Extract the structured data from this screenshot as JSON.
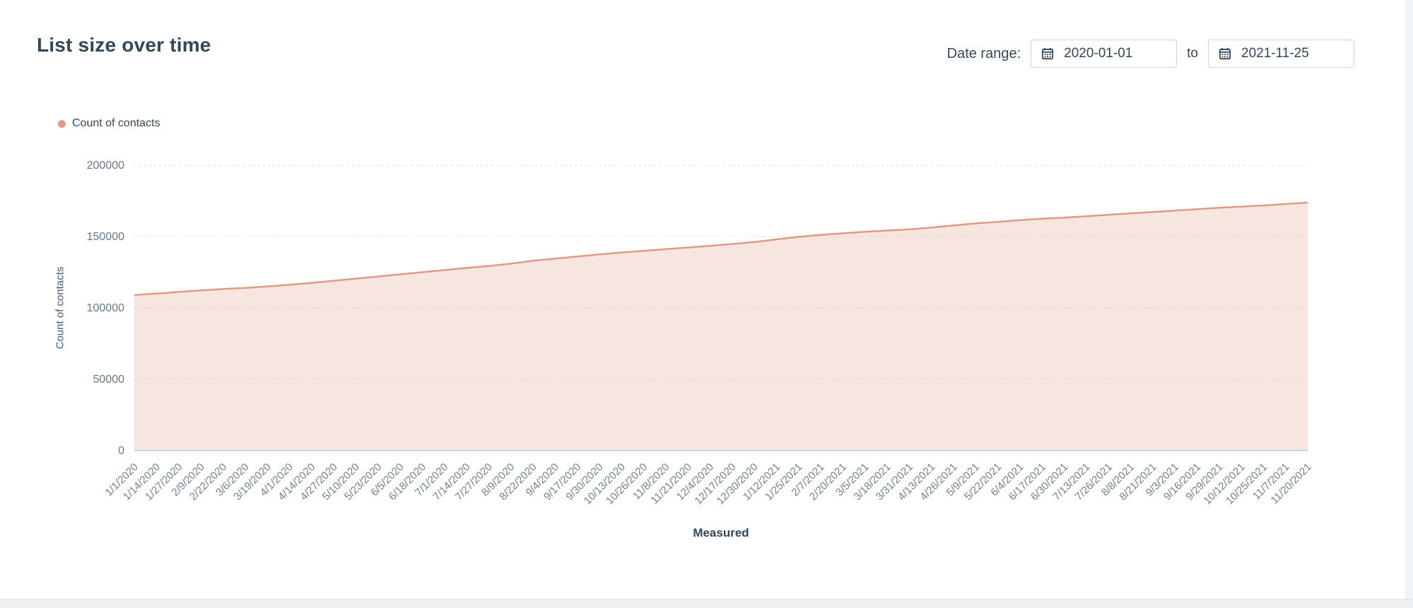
{
  "page": {
    "title": "List size over time"
  },
  "date_range": {
    "label": "Date range:",
    "start_value": "2020-01-01",
    "to_label": "to",
    "end_value": "2021-11-25",
    "icon": "calendar-icon"
  },
  "legend": {
    "position": "top-left",
    "items": [
      {
        "label": "Count of contacts",
        "color": "#e09a84"
      }
    ]
  },
  "chart_data": {
    "type": "area",
    "title": "List size over time",
    "xlabel": "Measured",
    "ylabel": "Count of contacts",
    "ylim": [
      0,
      200000
    ],
    "yticks": [
      0,
      50000,
      100000,
      150000,
      200000
    ],
    "grid": "horizontal dashed",
    "legend_position": "top-left",
    "categories": [
      "1/1/2020",
      "1/14/2020",
      "1/27/2020",
      "2/9/2020",
      "2/22/2020",
      "3/6/2020",
      "3/19/2020",
      "4/1/2020",
      "4/14/2020",
      "4/27/2020",
      "5/10/2020",
      "5/23/2020",
      "6/5/2020",
      "6/18/2020",
      "7/1/2020",
      "7/14/2020",
      "7/27/2020",
      "8/9/2020",
      "8/22/2020",
      "9/4/2020",
      "9/17/2020",
      "9/30/2020",
      "10/13/2020",
      "10/26/2020",
      "11/8/2020",
      "11/21/2020",
      "12/4/2020",
      "12/17/2020",
      "12/30/2020",
      "1/12/2021",
      "1/25/2021",
      "2/7/2021",
      "2/20/2021",
      "3/5/2021",
      "3/18/2021",
      "3/31/2021",
      "4/13/2021",
      "4/26/2021",
      "5/9/2021",
      "5/22/2021",
      "6/4/2021",
      "6/17/2021",
      "6/30/2021",
      "7/13/2021",
      "7/26/2021",
      "8/8/2021",
      "8/21/2021",
      "9/3/2021",
      "9/16/2021",
      "9/29/2021",
      "10/12/2021",
      "10/25/2021",
      "11/7/2021",
      "11/20/2021"
    ],
    "series": [
      {
        "name": "Count of contacts",
        "color": "#e09a84",
        "fill": "rgba(224,154,132,0.25)",
        "values": [
          109000,
          110000,
          111200,
          112300,
          113200,
          114000,
          115000,
          116200,
          117500,
          119000,
          120500,
          122000,
          123500,
          125000,
          126500,
          128000,
          129300,
          131000,
          133000,
          134500,
          136000,
          137500,
          138800,
          140000,
          141200,
          142300,
          143500,
          144800,
          146200,
          148000,
          149800,
          151200,
          152300,
          153300,
          154200,
          155000,
          156300,
          157800,
          159200,
          160300,
          161500,
          162500,
          163300,
          164200,
          165300,
          166300,
          167200,
          168200,
          169200,
          170200,
          171000,
          171800,
          172800,
          173800
        ]
      }
    ]
  },
  "colors": {
    "title_text": "#33475b",
    "axis_text": "#6f8090",
    "gridline": "#d8dde2",
    "axis_line": "#cbd6e2",
    "series_line": "#e09a84",
    "series_fill": "rgba(224,154,132,0.25)"
  }
}
